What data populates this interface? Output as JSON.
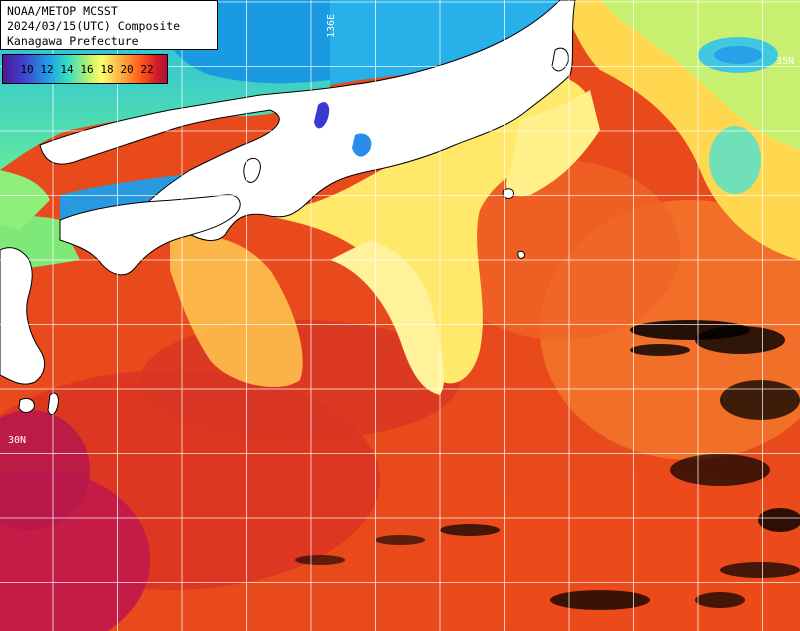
{
  "header": {
    "line1": "NOAA/METOP MCSST",
    "line2": "2024/03/15(UTC) Composite",
    "line3": "Kanagawa Prefecture"
  },
  "legend": {
    "values": [
      "10",
      "12",
      "14",
      "16",
      "18",
      "20",
      "22"
    ]
  },
  "grid": {
    "lat_label": "30N",
    "lon_label": "136E",
    "lat_label_right": "35N"
  },
  "colors": {
    "land": "#ffffff",
    "cloud": "#000000",
    "cold": "#2a8fe0",
    "warm": "#e8441c",
    "hot": "#c01a3a"
  }
}
